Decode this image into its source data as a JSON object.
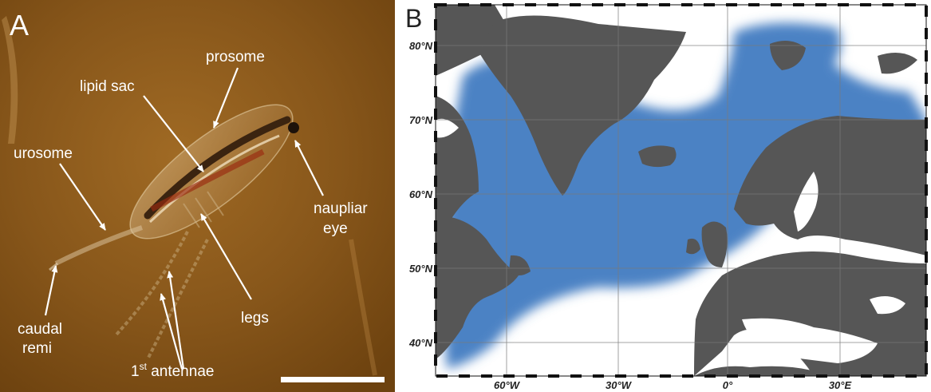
{
  "panelA": {
    "letter": "A",
    "labels": {
      "prosome": "prosome",
      "lipid_sac": "lipid sac",
      "urosome": "urosome",
      "naupliar_1": "naupliar",
      "naupliar_2": "eye",
      "legs": "legs",
      "caudal_1": "caudal",
      "caudal_2": "remi",
      "antennae_num": "1",
      "antennae_sup": "st",
      "antennae_word": " antennae"
    },
    "colors": {
      "background": "#8a5a1c",
      "label": "#ffffff",
      "scale_bar": "#ffffff"
    }
  },
  "panelB": {
    "letter": "B",
    "lat_labels": [
      "80°N",
      "70°N",
      "60°N",
      "50°N",
      "40°N"
    ],
    "lon_labels": [
      "60°W",
      "30°W",
      "0°",
      "30°E"
    ],
    "colors": {
      "land": "#565656",
      "ocean": "#ffffff",
      "distribution": "#4b82c4",
      "grid": "#7a7a7a"
    }
  }
}
